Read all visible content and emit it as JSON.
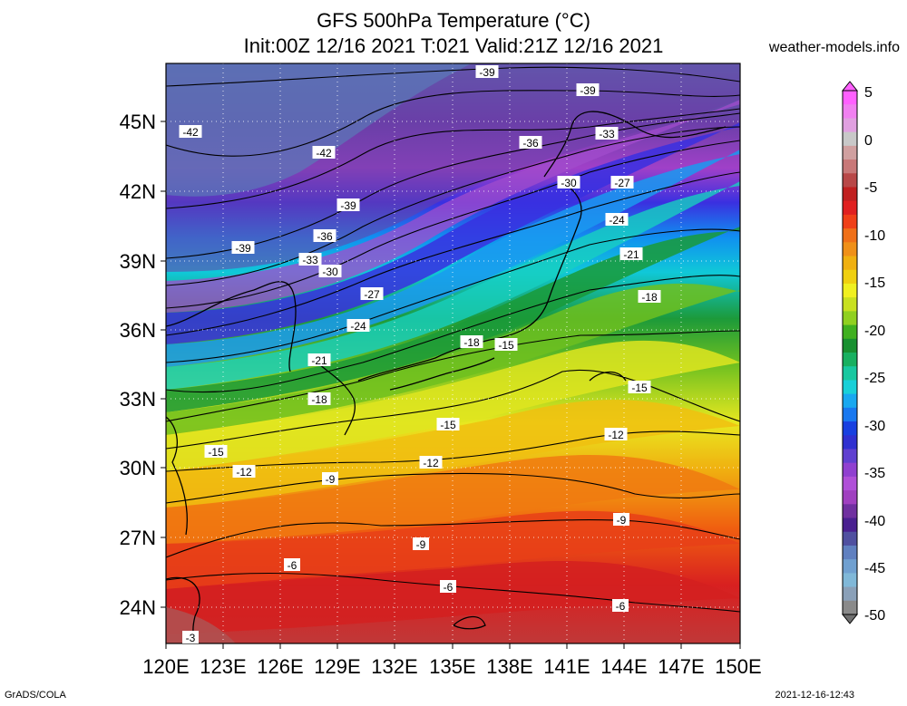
{
  "header": {
    "title_line1": "GFS 500hPa Temperature (°C)",
    "title_line2": "Init:00Z 12/16 2021 T:021 Valid:21Z 12/16 2021",
    "site": "weather-models.info"
  },
  "footer": {
    "left": "GrADS/COLA",
    "right": "2021-12-16-12:43"
  },
  "map": {
    "lon_labels": [
      "120E",
      "123E",
      "126E",
      "129E",
      "132E",
      "135E",
      "138E",
      "141E",
      "144E",
      "147E",
      "150E"
    ],
    "lat_labels": [
      "45N",
      "42N",
      "39N",
      "36N",
      "33N",
      "30N",
      "27N",
      "24N"
    ]
  },
  "colorbar": {
    "labels": [
      "5",
      "0",
      "-5",
      "-10",
      "-15",
      "-20",
      "-25",
      "-30",
      "-35",
      "-40",
      "-45",
      "-50"
    ]
  },
  "contour_labels": [
    "-39",
    "-39",
    "-42",
    "-42",
    "-36",
    "-33",
    "-39",
    "-30",
    "-27",
    "-39",
    "-36",
    "-24",
    "-33",
    "-30",
    "-21",
    "-27",
    "-18",
    "-24",
    "-18",
    "-15",
    "-21",
    "-15",
    "-18",
    "-15",
    "-12",
    "-15",
    "-12",
    "-12",
    "-9",
    "-9",
    "-9",
    "-6",
    "-6",
    "-6",
    "-3"
  ]
}
